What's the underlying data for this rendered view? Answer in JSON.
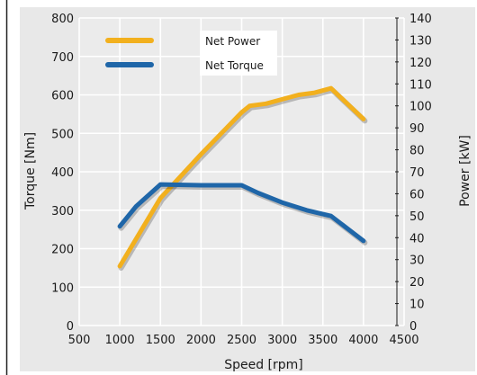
{
  "chart_data": {
    "type": "line",
    "title": "",
    "xlabel": "Speed [rpm]",
    "ylabel_left": "Torque [Nm]",
    "ylabel_right": "Power [kW]",
    "x_ticks": [
      "500",
      "1000",
      "1500",
      "2000",
      "2500",
      "3000",
      "3500",
      "4000",
      "4500"
    ],
    "y_left_ticks": [
      "0",
      "100",
      "200",
      "300",
      "400",
      "500",
      "600",
      "700",
      "800"
    ],
    "y_right_ticks": [
      "0",
      "10",
      "20",
      "30",
      "40",
      "50",
      "60",
      "70",
      "80",
      "90",
      "100",
      "110",
      "120",
      "130",
      "140"
    ],
    "xlim": [
      500,
      4500
    ],
    "ylim_left": [
      0,
      800
    ],
    "ylim_right": [
      0,
      140
    ],
    "grid": true,
    "legend_position": "top-left",
    "series": [
      {
        "name": "Net Power",
        "axis": "right",
        "color": "#f2b01e",
        "x": [
          1000,
          1500,
          2000,
          2500,
          2600,
          2800,
          3000,
          3200,
          3400,
          3600,
          4000
        ],
        "y": [
          27,
          58,
          78,
          97,
          100,
          101,
          103,
          105,
          106,
          108,
          94
        ]
      },
      {
        "name": "Net Torque",
        "axis": "left",
        "color": "#1f66a8",
        "x": [
          1000,
          1200,
          1500,
          2000,
          2500,
          2700,
          3000,
          3300,
          3600,
          4000
        ],
        "y": [
          258,
          310,
          367,
          365,
          365,
          345,
          320,
          300,
          285,
          220
        ]
      }
    ]
  }
}
